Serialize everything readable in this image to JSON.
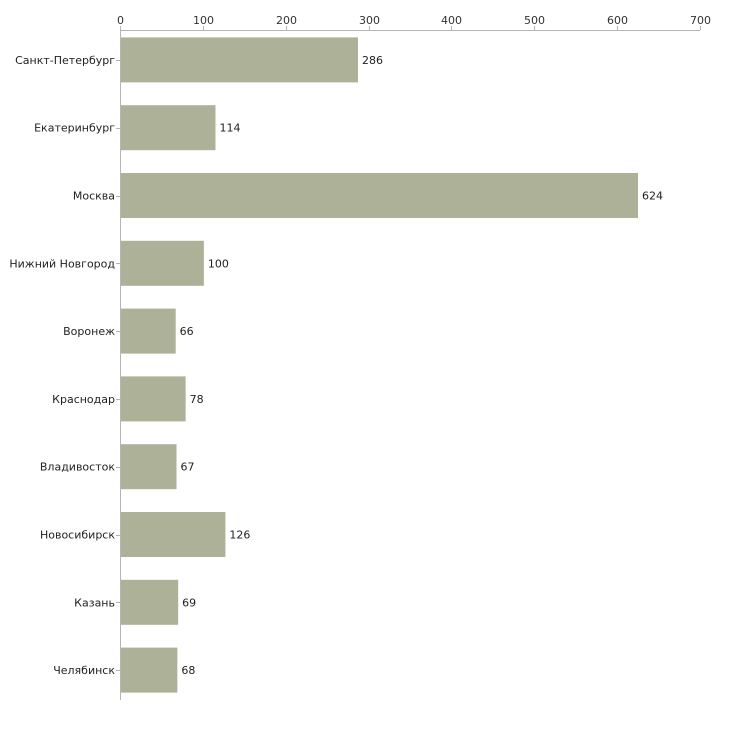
{
  "colors": {
    "bar": "#acb197",
    "axis": "#b5b5b5",
    "text": "#222222"
  },
  "chart_data": {
    "type": "bar",
    "orientation": "horizontal",
    "title": "",
    "xlabel": "",
    "ylabel": "",
    "xlim": [
      0,
      700
    ],
    "x_ticks": [
      0,
      100,
      200,
      300,
      400,
      500,
      600,
      700
    ],
    "x_axis_position": "top",
    "grid": false,
    "categories": [
      "Санкт-Петербург",
      "Екатеринбург",
      "Москва",
      "Нижний Новгород",
      "Воронеж",
      "Краснодар",
      "Владивосток",
      "Новосибирск",
      "Казань",
      "Челябинск"
    ],
    "values": [
      286,
      114,
      624,
      100,
      66,
      78,
      67,
      126,
      69,
      68
    ],
    "data_labels": true
  }
}
